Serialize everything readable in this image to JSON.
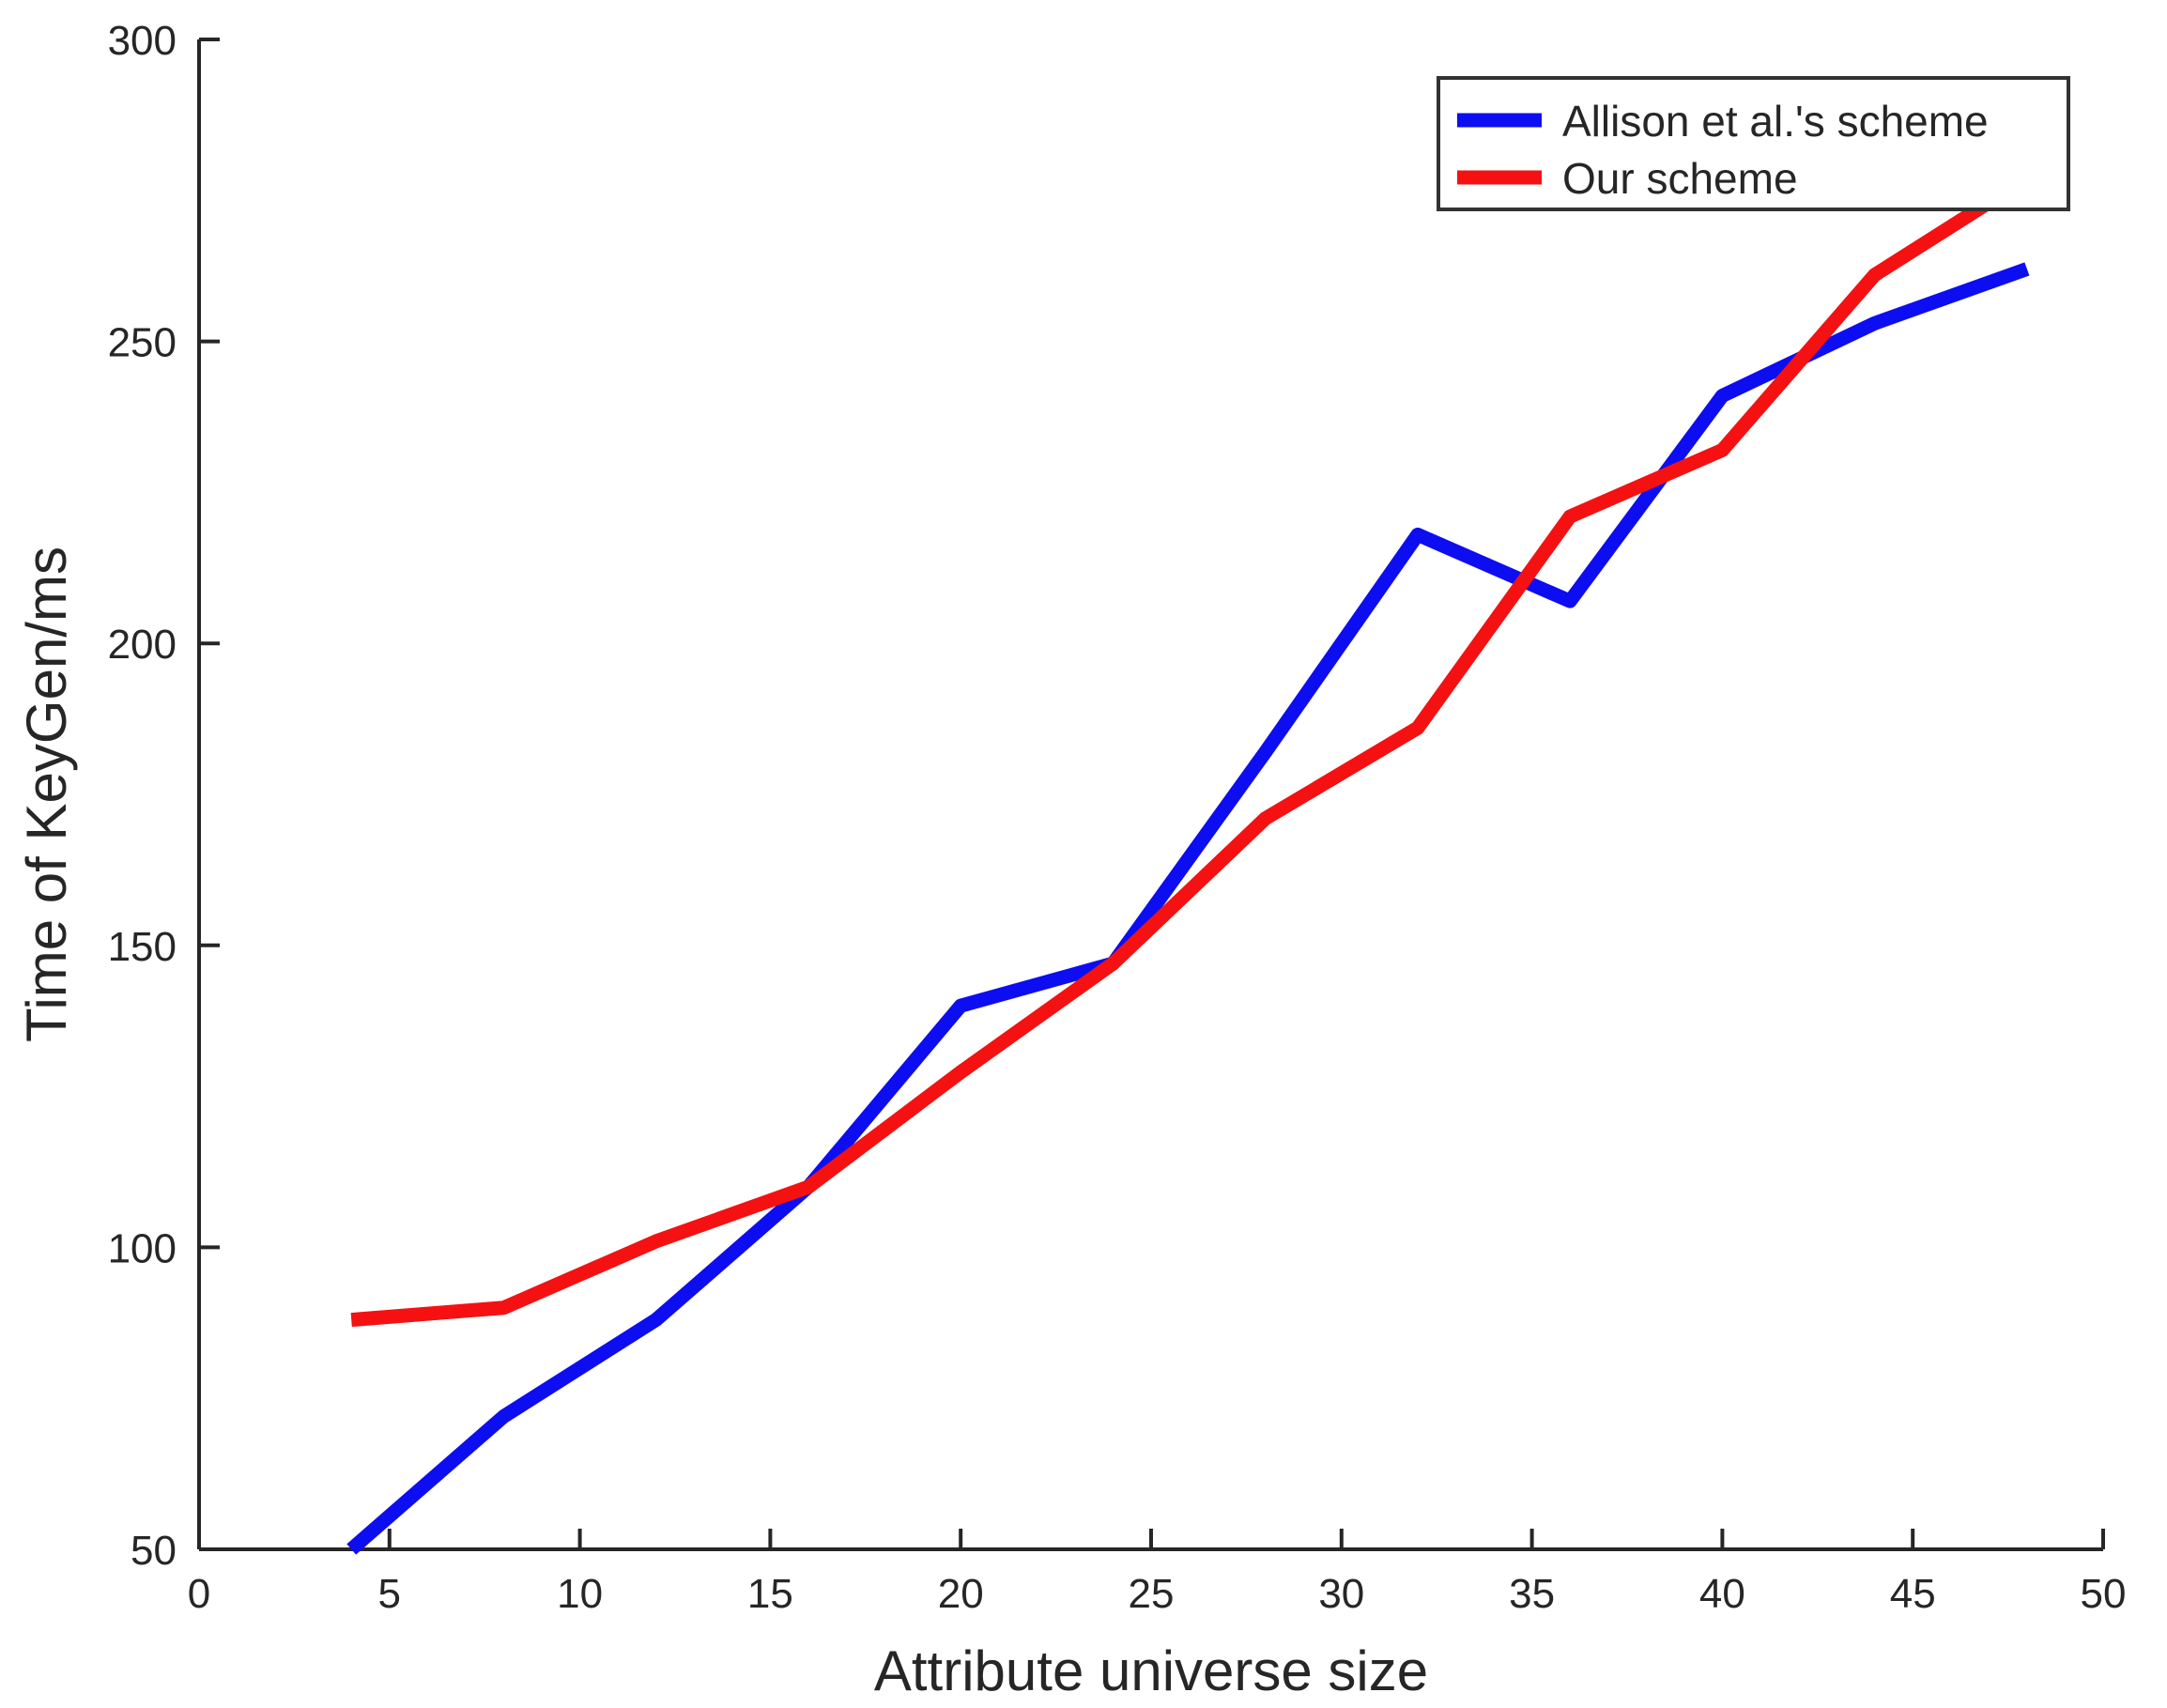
{
  "chart_data": {
    "type": "line",
    "title": "",
    "xlabel": "Attribute universe size",
    "ylabel": "Time of KeyGen/ms",
    "xlim": [
      0,
      50
    ],
    "ylim": [
      50,
      300
    ],
    "x_ticks": [
      0,
      5,
      10,
      15,
      20,
      25,
      30,
      35,
      40,
      45,
      50
    ],
    "y_ticks": [
      50,
      100,
      150,
      200,
      250,
      300
    ],
    "grid": false,
    "legend_position": "top-right",
    "x": [
      4,
      8,
      12,
      16,
      20,
      24,
      28,
      32,
      36,
      40,
      44,
      48
    ],
    "series": [
      {
        "name": "Allison et al.'s scheme",
        "color": "#0d0df2",
        "values": [
          50,
          72,
          88,
          110,
          140,
          147,
          182,
          218,
          207,
          241,
          253,
          262
        ]
      },
      {
        "name": "Our scheme",
        "color": "#f51111",
        "values": [
          88,
          90,
          101,
          110,
          129,
          147,
          171,
          186,
          221,
          232,
          261,
          277
        ]
      }
    ]
  },
  "axes": {
    "color": "#262626"
  }
}
